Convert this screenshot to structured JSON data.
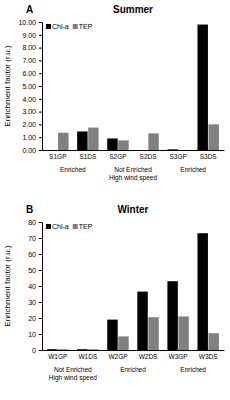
{
  "chart_data": [
    {
      "type": "bar",
      "panel_label": "A",
      "title": "Summer",
      "y_label": "Enrichment factor (r.u.)",
      "categories": [
        "S1GP",
        "S1DS",
        "S2GP",
        "S2DS",
        "S3GP",
        "S3DS"
      ],
      "group_labels": [
        [
          "Enriched"
        ],
        [
          "Not Enriched",
          "High wind speed"
        ],
        [
          "Enriched"
        ]
      ],
      "series": [
        {
          "name": "Chl-a",
          "color": "#000000",
          "values": [
            0,
            1.45,
            0.9,
            0,
            0.05,
            9.8
          ]
        },
        {
          "name": "TEP",
          "color": "#808080",
          "values": [
            1.35,
            1.75,
            0.75,
            1.3,
            0,
            2.0
          ]
        }
      ],
      "ylim": [
        0,
        10
      ],
      "yticks": [
        {
          "value": 0,
          "label": "0.00"
        },
        {
          "value": 1,
          "label": "1.00"
        },
        {
          "value": 2,
          "label": "2.00"
        },
        {
          "value": 3,
          "label": "3.00"
        },
        {
          "value": 4,
          "label": "4.00"
        },
        {
          "value": 5,
          "label": "5.00"
        },
        {
          "value": 6,
          "label": "6.00"
        },
        {
          "value": 7,
          "label": "7.00"
        },
        {
          "value": 8,
          "label": "8.00"
        },
        {
          "value": 9,
          "label": "9.00"
        },
        {
          "value": 10,
          "label": "10.00"
        }
      ],
      "grid": false,
      "legend": "upper left"
    },
    {
      "type": "bar",
      "panel_label": "B",
      "title": "Winter",
      "y_label": "Enrichment factor (r.u.)",
      "categories": [
        "W1GP",
        "W1DS",
        "W2GP",
        "W2DS",
        "W3GP",
        "W3DS"
      ],
      "group_labels": [
        [
          "Not Enriched",
          "High wind speed"
        ],
        [
          "Enriched"
        ],
        [
          "Enriched"
        ]
      ],
      "series": [
        {
          "name": "Chl-a",
          "color": "#000000",
          "values": [
            0.5,
            0.5,
            19,
            36.5,
            43,
            73
          ]
        },
        {
          "name": "TEP",
          "color": "#808080",
          "values": [
            0.5,
            0.5,
            8.5,
            20.5,
            21,
            10.5
          ]
        }
      ],
      "ylim": [
        0,
        80
      ],
      "yticks": [
        0,
        10,
        20,
        30,
        40,
        50,
        60,
        70,
        80
      ],
      "grid": false,
      "legend": "upper left"
    }
  ]
}
